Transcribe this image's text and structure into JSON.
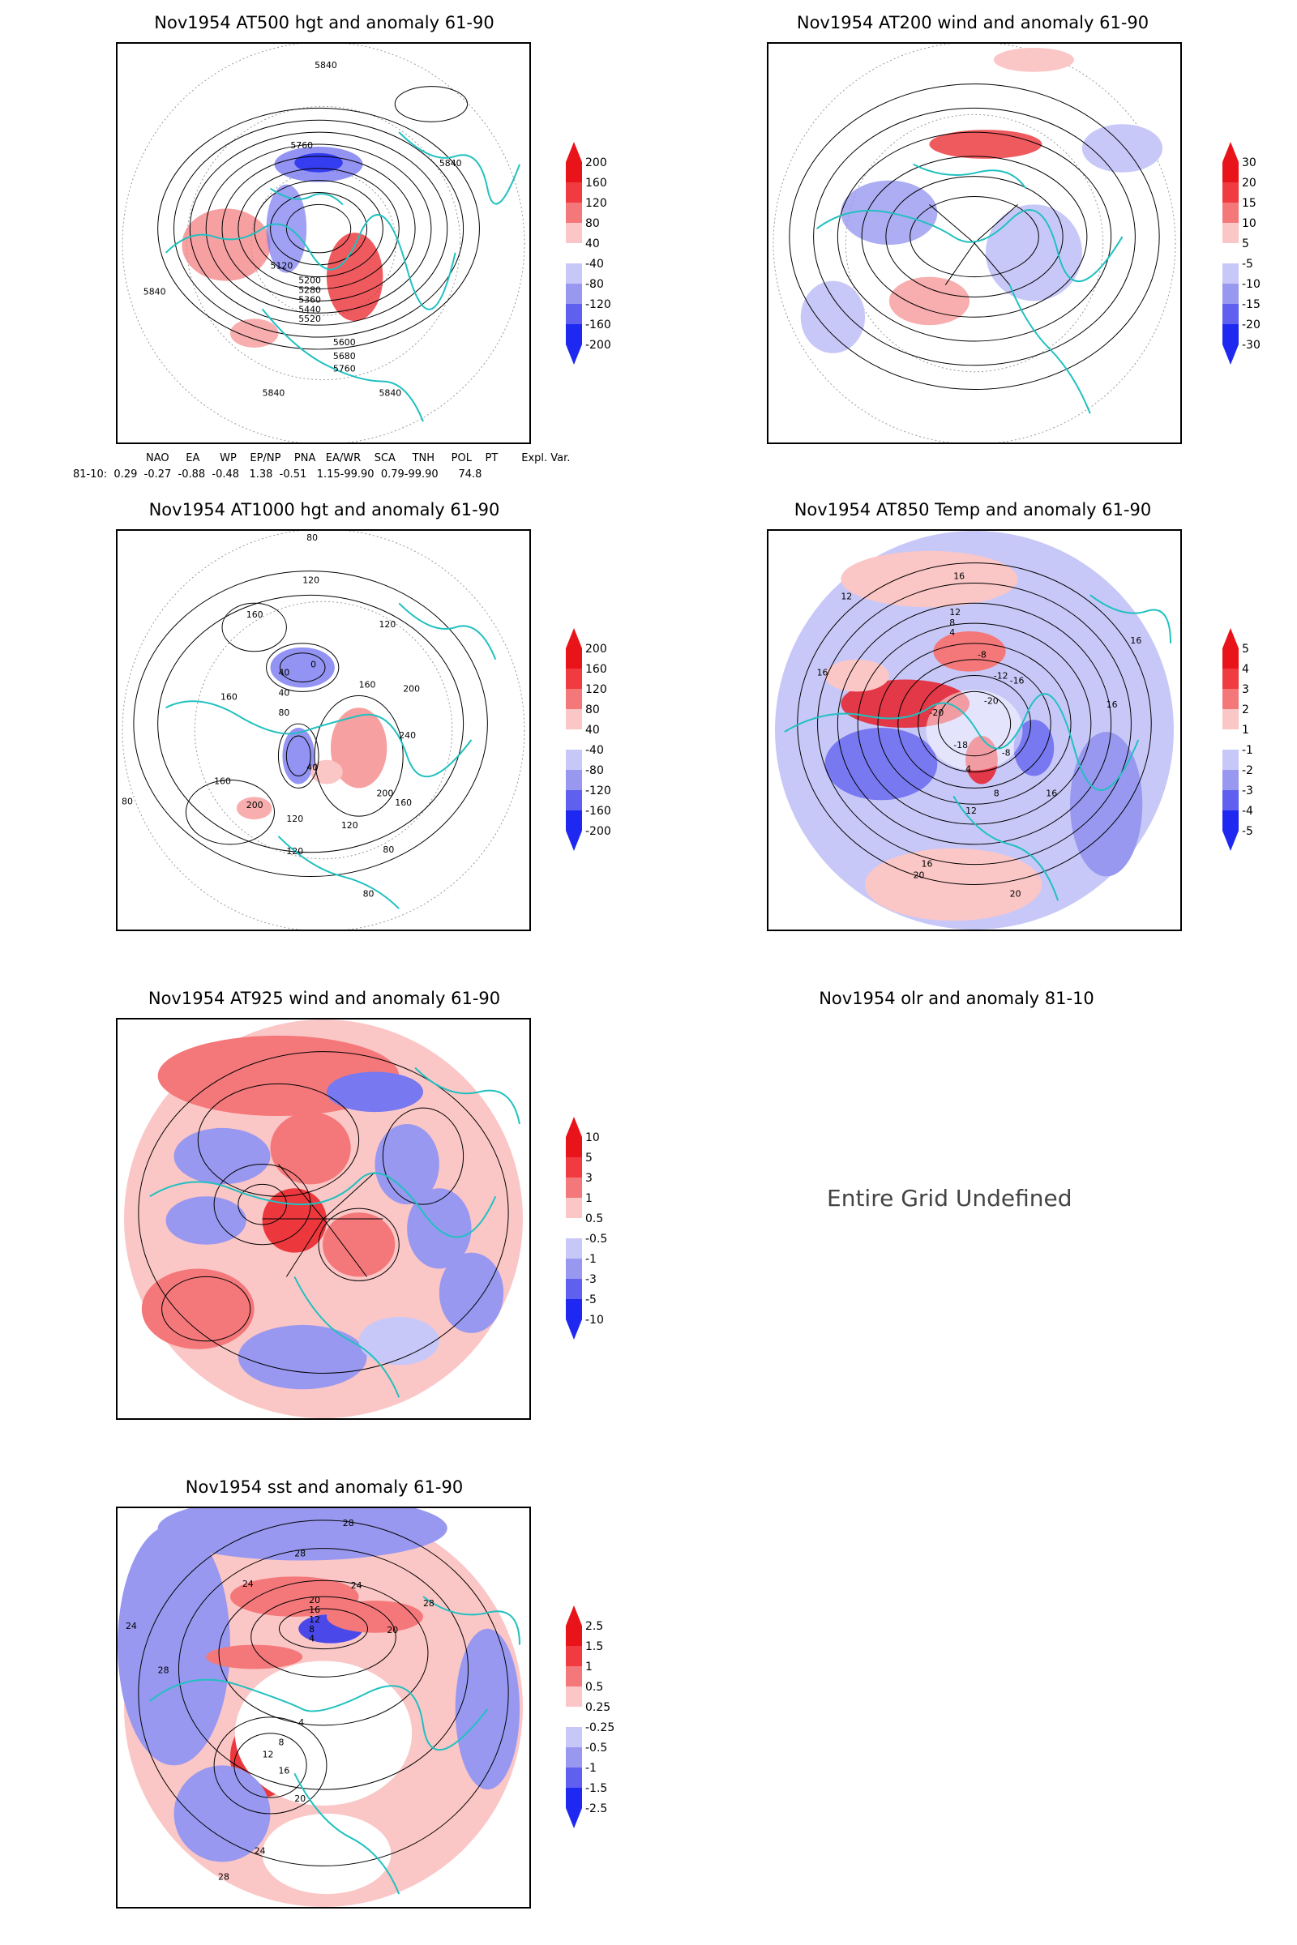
{
  "panels": [
    {
      "title": "Nov1954 AT500 hgt and anomaly 61-90",
      "contour_labels": [
        "5840",
        "5760",
        "5120",
        "5200",
        "5280",
        "5360",
        "5440",
        "5520",
        "5600",
        "5680",
        "5760",
        "5840",
        "5840",
        "5840",
        "5840"
      ]
    },
    {
      "title": "Nov1954 AT200 wind and anomaly 61-90"
    },
    {
      "title": "Nov1954 AT1000 hgt and anomaly 61-90",
      "contour_labels": [
        "80",
        "120",
        "160",
        "120",
        "160",
        "40",
        "0",
        "40",
        "80",
        "160",
        "200",
        "240",
        "200",
        "160",
        "120",
        "80",
        "120",
        "80",
        "40",
        "200",
        "160",
        "120",
        "80"
      ]
    },
    {
      "title": "Nov1954 AT850 Temp and anomaly 61-90",
      "contour_labels": [
        "16",
        "12",
        "16",
        "12",
        "8",
        "4",
        "-8",
        "-12",
        "-16",
        "-20",
        "-20",
        "-18",
        "-8",
        "4",
        "8",
        "12",
        "16",
        "16",
        "16",
        "20",
        "20",
        "16"
      ]
    },
    {
      "title": "Nov1954 AT925 wind and anomaly 61-90"
    },
    {
      "title": "Nov1954 olr and anomaly 81-10",
      "message": "Entire Grid Undefined"
    },
    {
      "title": "Nov1954 sst and anomaly 61-90",
      "contour_labels": [
        "28",
        "28",
        "24",
        "24",
        "20",
        "16",
        "12",
        "8",
        "4",
        "24",
        "28",
        "28",
        "20",
        "16",
        "12",
        "8",
        "4",
        "20",
        "24",
        "28"
      ]
    }
  ],
  "colorbars": {
    "hgt": [
      "200",
      "160",
      "120",
      "80",
      "40",
      "-40",
      "-80",
      "-120",
      "-160",
      "-200"
    ],
    "wind200": [
      "30",
      "20",
      "15",
      "10",
      "5",
      "-5",
      "-10",
      "-15",
      "-20",
      "-30"
    ],
    "hgt1000": [
      "200",
      "160",
      "120",
      "80",
      "40",
      "-40",
      "-80",
      "-120",
      "-160",
      "-200"
    ],
    "temp": [
      "5",
      "4",
      "3",
      "2",
      "1",
      "-1",
      "-2",
      "-3",
      "-4",
      "-5"
    ],
    "wind925": [
      "10",
      "5",
      "3",
      "1",
      "0.5",
      "-0.5",
      "-1",
      "-3",
      "-5",
      "-10"
    ],
    "sst": [
      "2.5",
      "1.5",
      "1",
      "0.5",
      "0.25",
      "-0.25",
      "-0.5",
      "-1",
      "-1.5",
      "-2.5"
    ]
  },
  "indices": {
    "header": "NAO     EA      WP    EP/NP    PNA   EA/WR    SCA     TNH     POL    PT       Expl. Var.",
    "row": "81-10:  0.29  -0.27  -0.88  -0.48   1.38  -0.51   1.15-99.90  0.79-99.90      74.8"
  },
  "colors": {
    "coast": "#20c0c0",
    "red_strong": "#e8141a",
    "red_mid": "#f4787a",
    "red_light": "#fbc6c6",
    "blue_light": "#c8c8f8",
    "blue_mid": "#7878f0",
    "blue_strong": "#1e28f0",
    "contour": "#000000",
    "grid": "#999999"
  }
}
